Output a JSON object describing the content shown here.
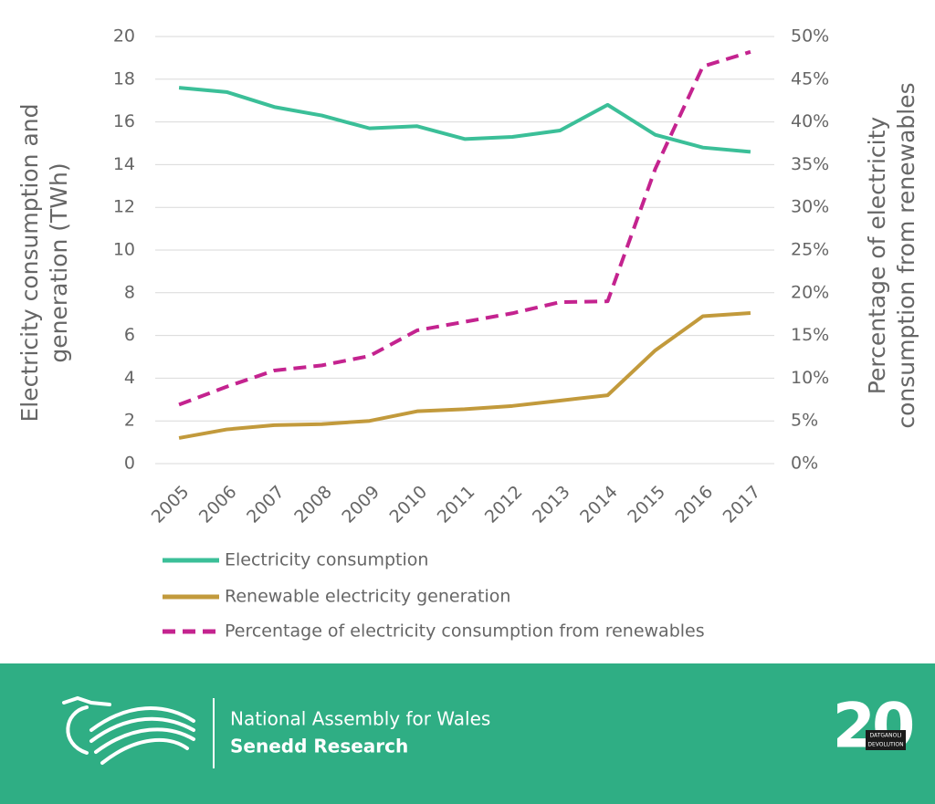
{
  "chart_data": {
    "type": "line",
    "ylabel": [
      "Electricity consumption and",
      "generation (TWh)"
    ],
    "y2label": [
      "Percentage of electricity",
      "consumption from renewables"
    ],
    "categories": [
      "2005",
      "2006",
      "2007",
      "2008",
      "2009",
      "2010",
      "2011",
      "2012",
      "2013",
      "2014",
      "2015",
      "2016",
      "2017"
    ],
    "series": [
      {
        "name": "Electricity consumption",
        "color": "#3bbf98",
        "dash": false,
        "values": [
          17.6,
          17.4,
          16.7,
          16.3,
          15.7,
          15.8,
          15.2,
          15.3,
          15.6,
          16.8,
          15.4,
          14.8,
          14.6
        ]
      },
      {
        "name": "Renewable electricity generation",
        "color": "#c29a3c",
        "dash": false,
        "values": [
          1.2,
          1.6,
          1.8,
          1.85,
          2.0,
          2.45,
          2.55,
          2.7,
          2.95,
          3.2,
          5.3,
          6.9,
          7.05
        ]
      },
      {
        "name": "Percentage of electricity consumption from renewables",
        "color": "#c4238f",
        "dash": true,
        "axis": "y2",
        "values": [
          6.9,
          9,
          10.9,
          11.5,
          12.6,
          15.6,
          16.6,
          17.6,
          18.9,
          19,
          34.5,
          46.5,
          48.2
        ]
      }
    ],
    "ylim": [
      0,
      20
    ],
    "yticks": [
      0,
      2,
      4,
      6,
      8,
      10,
      12,
      14,
      16,
      18,
      20
    ],
    "y2lim": [
      0,
      50
    ],
    "y2ticks": [
      {
        "value": 0,
        "label": "0%"
      },
      {
        "value": 5,
        "label": "5%"
      },
      {
        "value": 10,
        "label": "10%"
      },
      {
        "value": 15,
        "label": "15%"
      },
      {
        "value": 20,
        "label": "20%"
      },
      {
        "value": 25,
        "label": "25%"
      },
      {
        "value": 30,
        "label": "30%"
      },
      {
        "value": 35,
        "label": "35%"
      },
      {
        "value": 40,
        "label": "40%"
      },
      {
        "value": 45,
        "label": "45%"
      },
      {
        "value": 50,
        "label": "50%"
      }
    ],
    "grid": true
  },
  "footer": {
    "organisation": "National Assembly for Wales",
    "unit": "Senedd Research",
    "badge": "20",
    "badge_top": "DATGANOLI",
    "badge_bottom": "DEVOLUTION"
  }
}
